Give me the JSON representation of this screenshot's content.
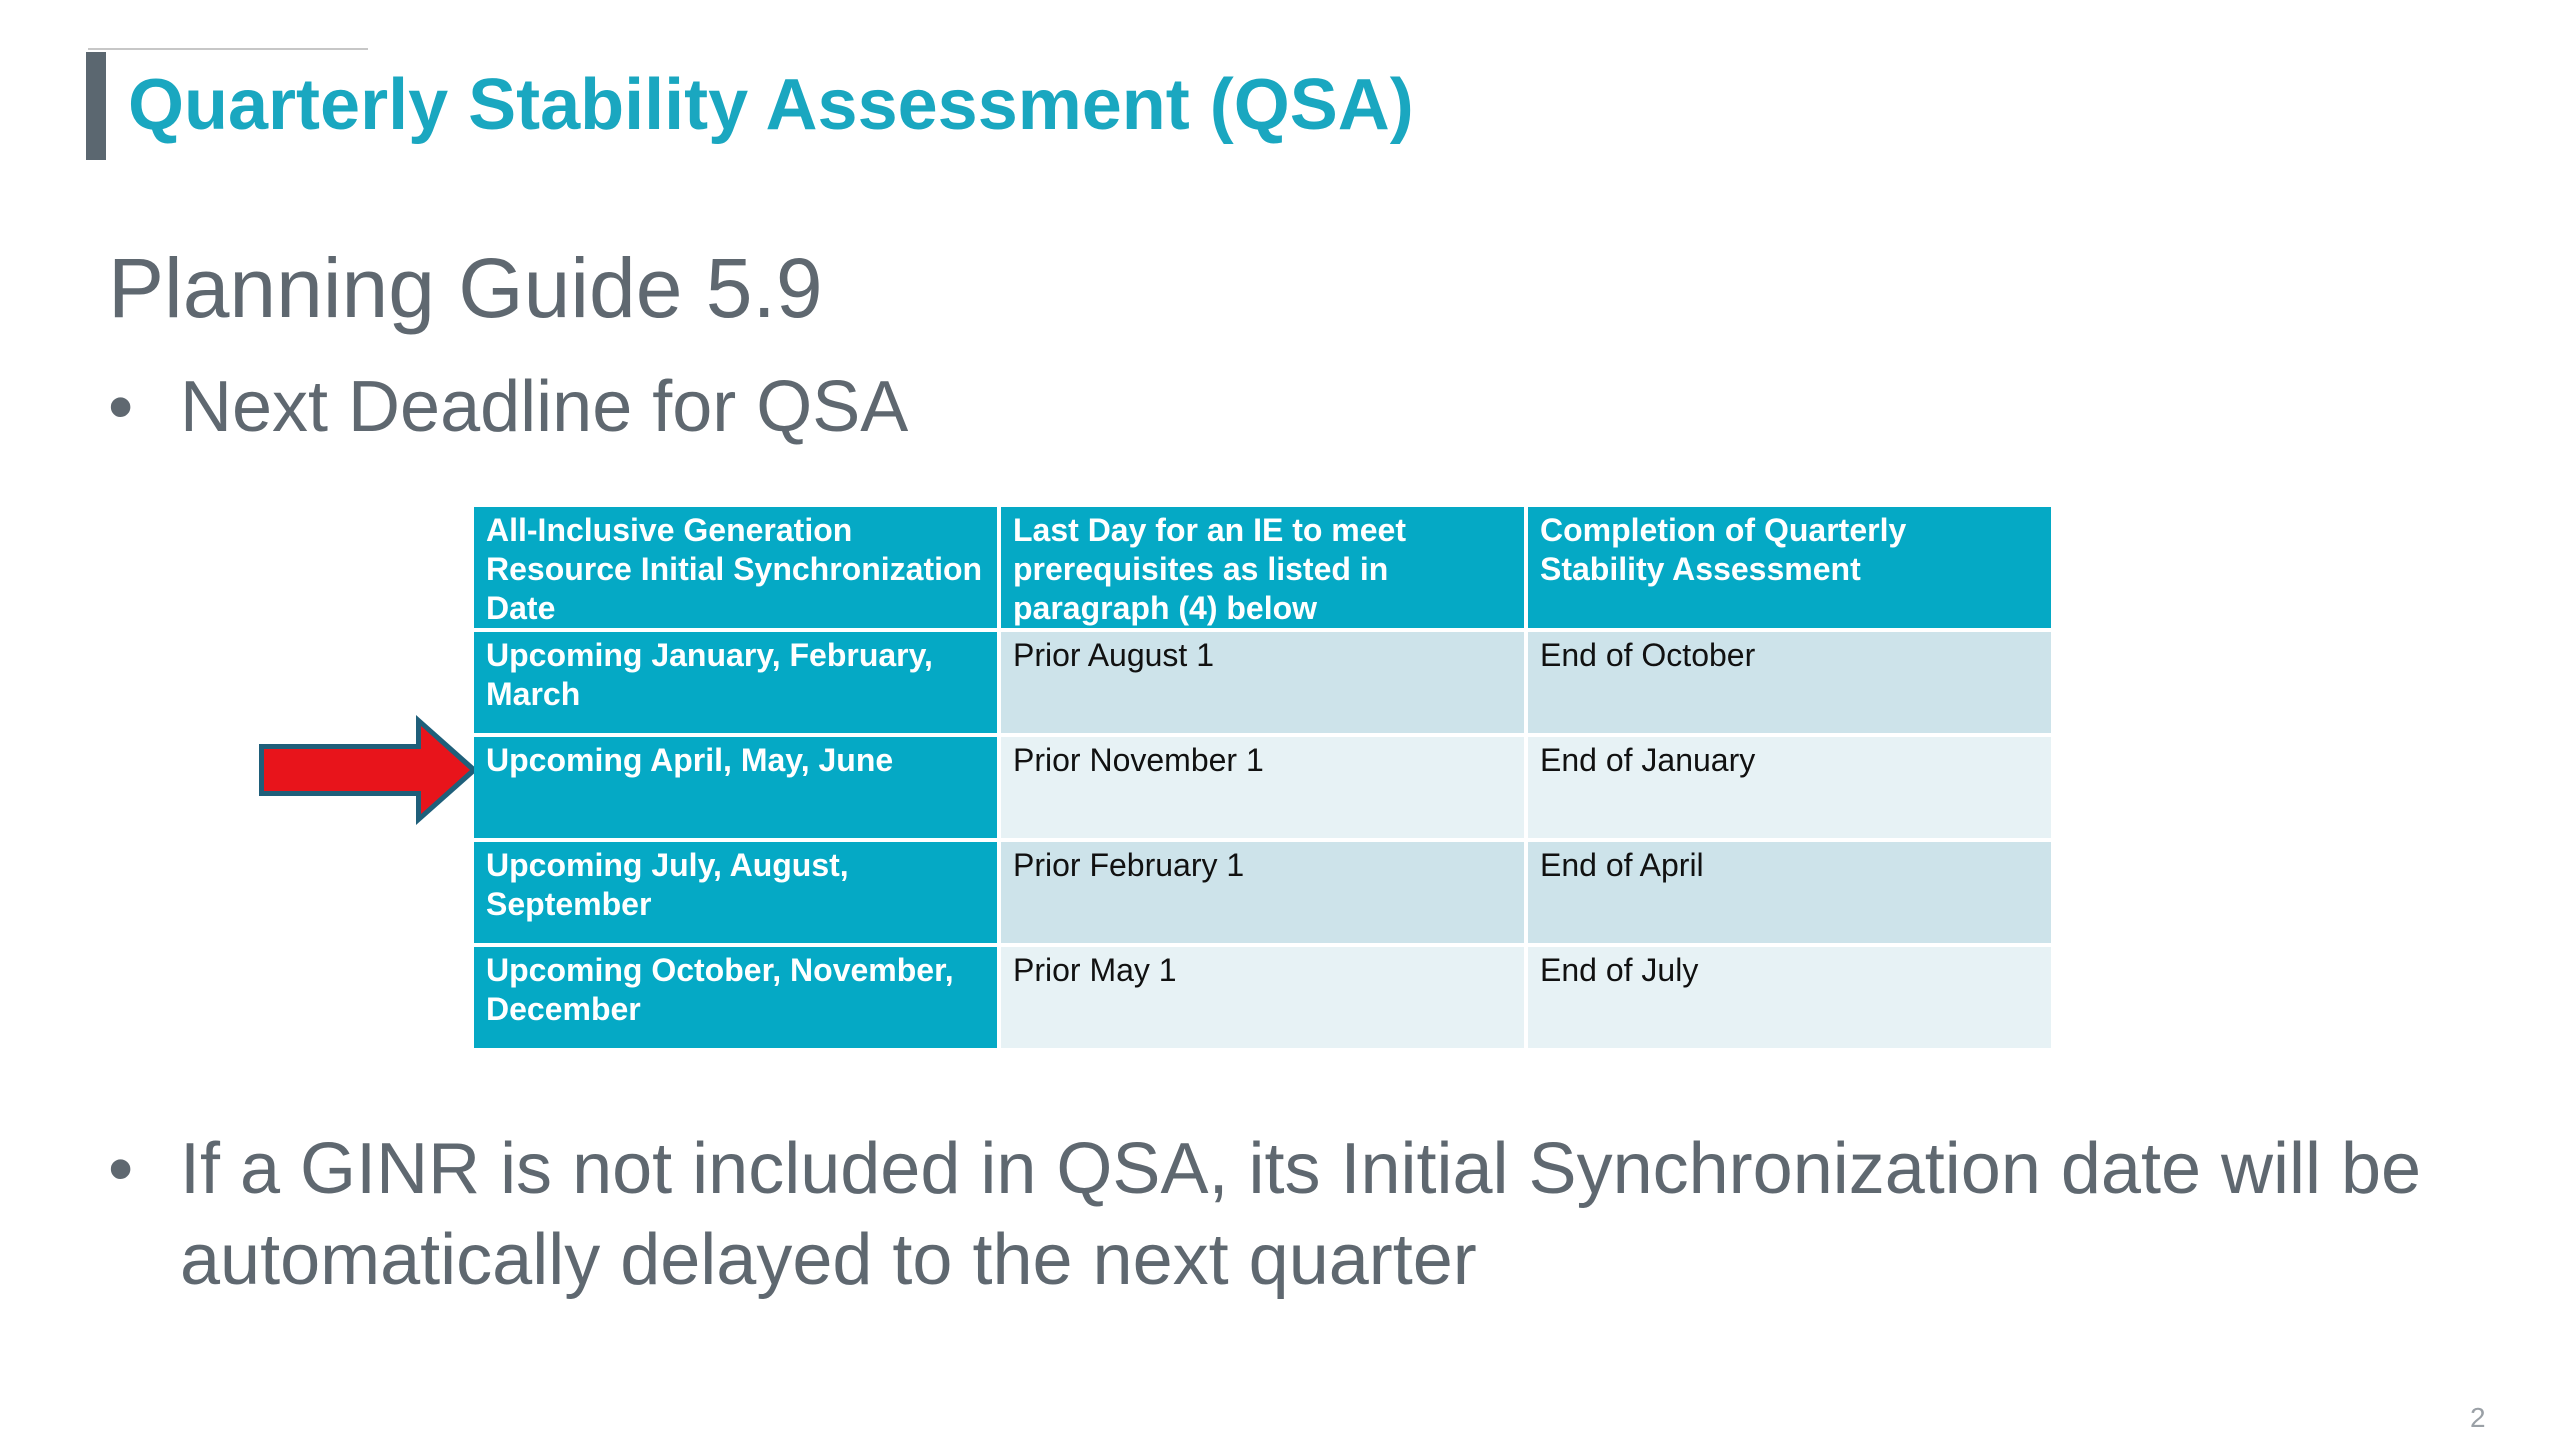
{
  "slide": {
    "title": "Quarterly Stability Assessment (QSA)",
    "subtitle": "Planning Guide 5.9",
    "bullets": [
      "Next Deadline for QSA",
      "If a GINR is not included in QSA, its Initial Synchronization date will be automatically delayed to the next quarter"
    ],
    "bullet_glyph": "•",
    "page_number": "2",
    "accent_color": "#1aa7c0",
    "table_header_color": "#05a9c5",
    "arrow_icon": "red-right-arrow-icon",
    "arrow_color": "#e8141b"
  },
  "table": {
    "headers": [
      "All-Inclusive Generation Resource Initial Synchronization Date",
      "Last Day for an IE to meet prerequisites as listed in paragraph (4) below",
      "Completion of Quarterly Stability Assessment"
    ],
    "rows": [
      [
        "Upcoming January, February, March",
        "Prior August 1",
        "End of October"
      ],
      [
        "Upcoming April, May, June",
        "Prior November 1",
        "End of January"
      ],
      [
        "Upcoming July, August, September",
        "Prior February 1",
        "End of April"
      ],
      [
        "Upcoming October, November, December",
        "Prior May 1",
        "End of July"
      ]
    ]
  }
}
